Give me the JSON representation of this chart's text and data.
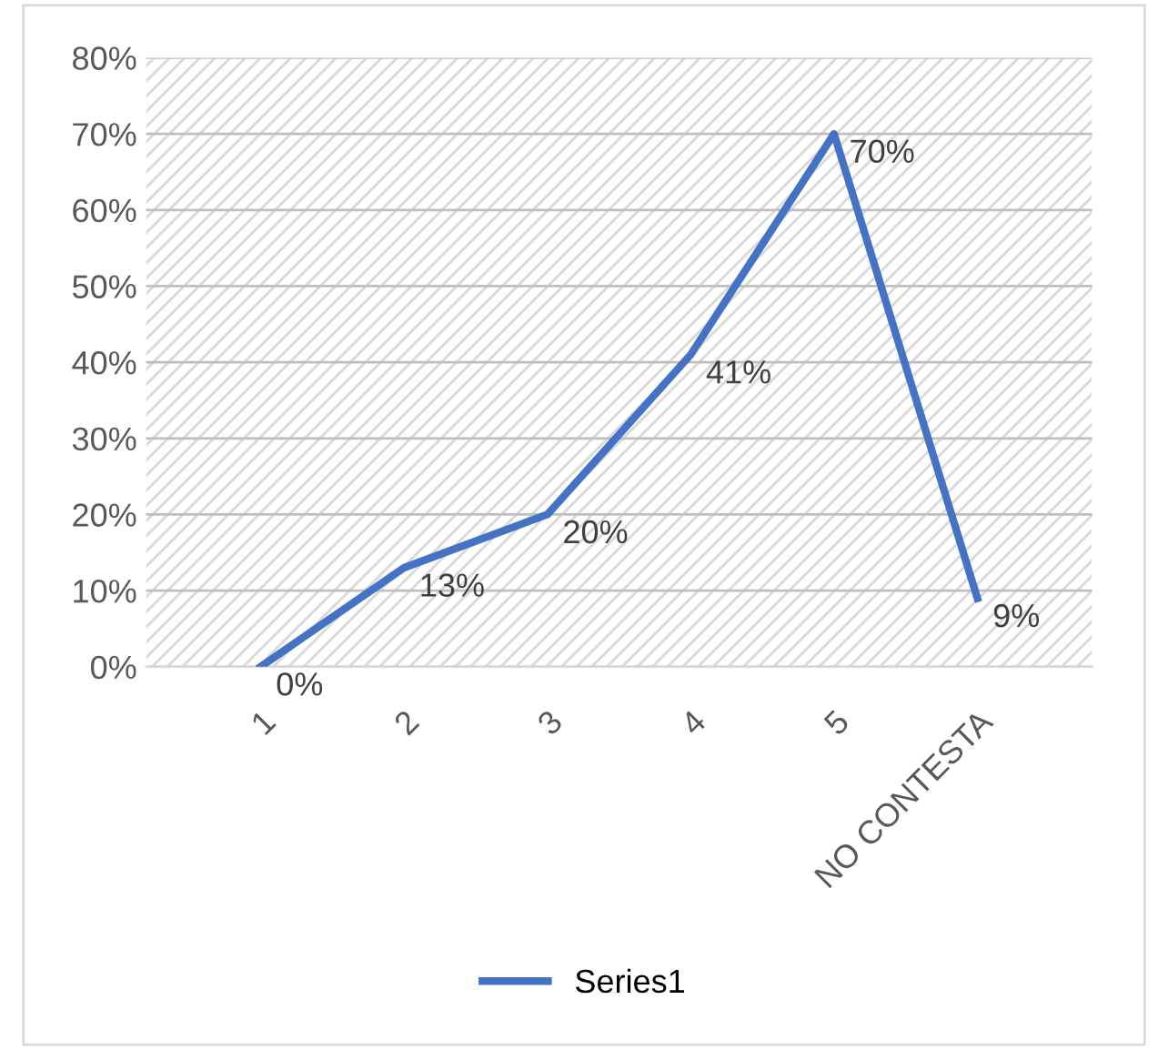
{
  "chart_data": {
    "type": "line",
    "categories": [
      "1",
      "2",
      "3",
      "4",
      "5",
      "NO CONTESTA"
    ],
    "series": [
      {
        "name": "Series1",
        "color": "#4472c4",
        "values": [
          0,
          13,
          20,
          41,
          70,
          9
        ],
        "value_labels": [
          "0%",
          "13%",
          "20%",
          "41%",
          "70%",
          "9%"
        ]
      }
    ],
    "ylim": [
      0,
      80
    ],
    "yticks": [
      {
        "value": 0,
        "label": "0%"
      },
      {
        "value": 10,
        "label": "10%"
      },
      {
        "value": 20,
        "label": "20%"
      },
      {
        "value": 30,
        "label": "30%"
      },
      {
        "value": 40,
        "label": "40%"
      },
      {
        "value": 50,
        "label": "50%"
      },
      {
        "value": 60,
        "label": "60%"
      },
      {
        "value": 70,
        "label": "70%"
      },
      {
        "value": 80,
        "label": "80%"
      }
    ],
    "grid": "y",
    "legend": "bottom",
    "marker": "none",
    "line_style": "solid"
  }
}
